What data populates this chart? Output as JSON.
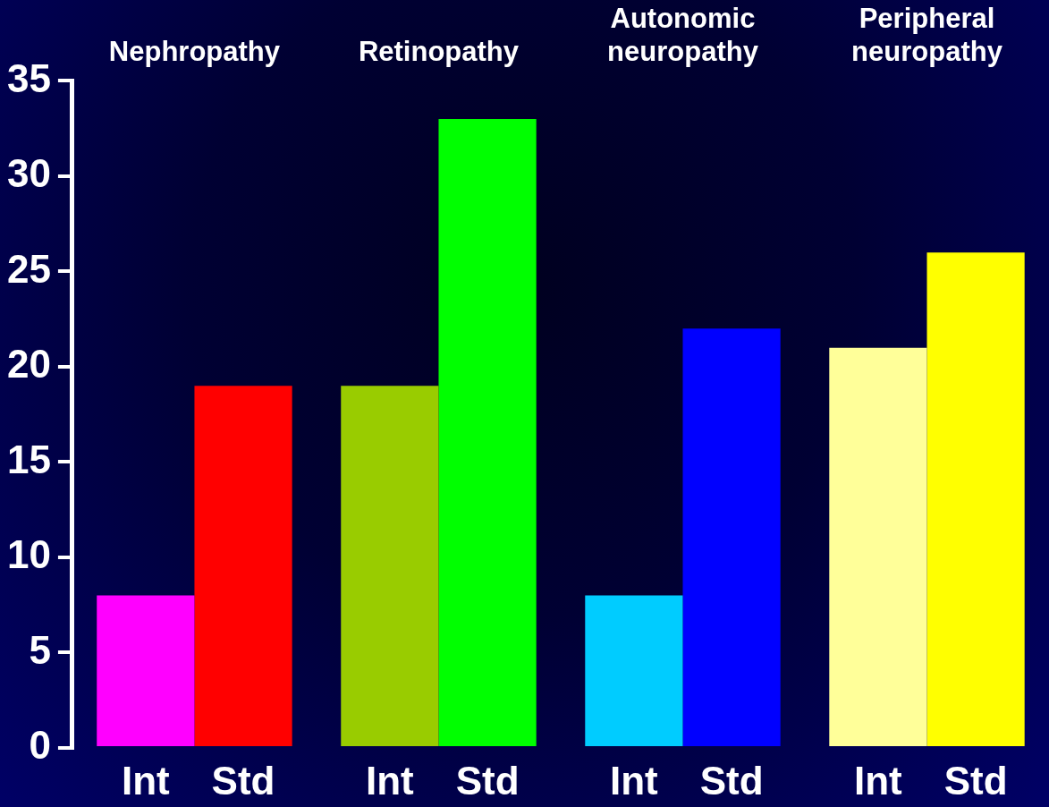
{
  "chart_data": {
    "type": "bar",
    "categories": [
      "Nephropathy",
      "Retinopathy",
      "Autonomic neuropathy",
      "Peripheral neuropathy"
    ],
    "series": [
      {
        "name": "Int",
        "colors": [
          "#ff00ff",
          "#99cc00",
          "#00ccff",
          "#ffff99"
        ],
        "values": [
          8,
          19,
          8,
          21
        ]
      },
      {
        "name": "Std",
        "colors": [
          "#ff0000",
          "#00ff00",
          "#0000ff",
          "#ffff00"
        ],
        "values": [
          19,
          33,
          22,
          26
        ]
      }
    ],
    "ylim": [
      0,
      35
    ],
    "yticks": [
      0,
      5,
      10,
      15,
      20,
      25,
      30,
      35
    ],
    "grid": false,
    "legend": false
  }
}
